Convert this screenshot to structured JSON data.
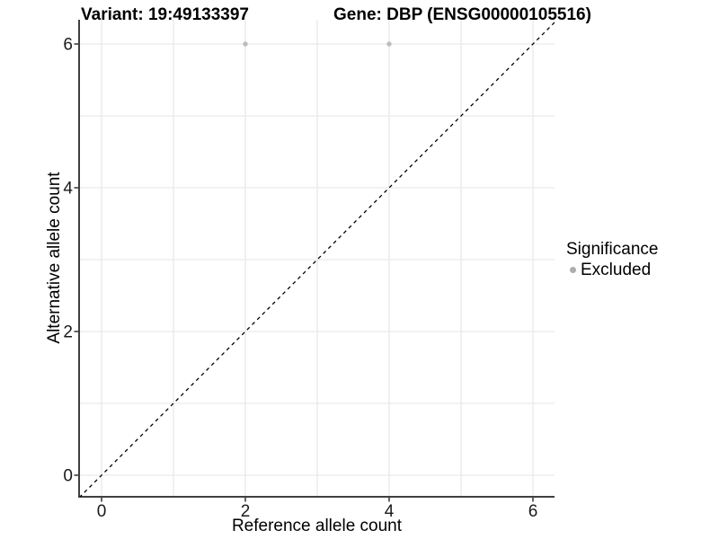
{
  "chart_data": {
    "type": "scatter",
    "title_left": "Variant: 19:49133397",
    "title_right": "Gene: DBP (ENSG00000105516)",
    "xlabel": "Reference allele count",
    "ylabel": "Alternative allele count",
    "xlim": [
      -0.31,
      6.31
    ],
    "ylim": [
      -0.31,
      6.34
    ],
    "xticks": [
      0,
      2,
      4,
      6
    ],
    "yticks": [
      0,
      2,
      4,
      6
    ],
    "grid_x": [
      0,
      1,
      2,
      3,
      4,
      5,
      6
    ],
    "grid_y": [
      0,
      1,
      2,
      3,
      4,
      5,
      6
    ],
    "grid": "on",
    "reference_line": {
      "label": "identity y=x",
      "style": "dashed",
      "color": "#000000",
      "x1": -0.31,
      "y1": -0.31,
      "x2": 6.34,
      "y2": 6.34
    },
    "series": [
      {
        "name": "Excluded",
        "marker": "circle",
        "color": "#bcbcbc",
        "points": [
          [
            2,
            6
          ],
          [
            4,
            6
          ]
        ]
      }
    ],
    "legend": {
      "title": "Significance",
      "position": "right",
      "items": [
        {
          "label": "Excluded",
          "color": "#adadad",
          "marker": "dot"
        }
      ]
    },
    "colors": {
      "grid": "#e9e9e9",
      "axis_line": "#404040",
      "tick_label": "#1a1a1a",
      "title": "#000000"
    }
  }
}
